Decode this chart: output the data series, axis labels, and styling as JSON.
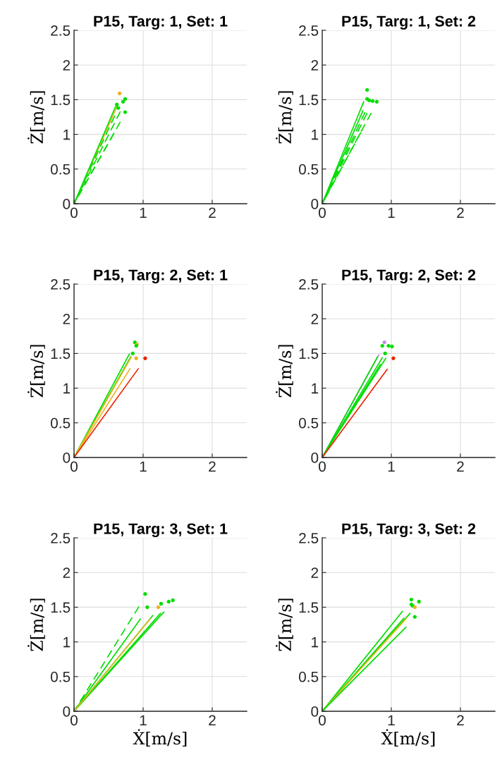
{
  "chart_data": [
    {
      "type": "line",
      "title": "P15, Targ: 1, Set: 1",
      "ylabel": "Ż[m/s]",
      "xlim": [
        0,
        2.5
      ],
      "ylim": [
        0,
        2.5
      ],
      "xticks": [
        0,
        1,
        2
      ],
      "yticks": [
        0,
        0.5,
        1,
        1.5,
        2,
        2.5
      ],
      "grid": true,
      "series": [
        {
          "type": "line",
          "color": "#edb120",
          "line_style": "solid",
          "x": [
            0,
            0.63
          ],
          "values": [
            0,
            1.42
          ]
        },
        {
          "type": "line",
          "color": "#00dd00",
          "line_style": "solid",
          "x": [
            0,
            0.6
          ],
          "values": [
            0,
            1.4
          ]
        },
        {
          "type": "line",
          "color": "#00dd00",
          "line_style": "dashed",
          "x": [
            0,
            0.67
          ],
          "values": [
            0,
            1.33
          ]
        },
        {
          "type": "line",
          "color": "#00dd00",
          "line_style": "dashed",
          "x": [
            0,
            0.59
          ],
          "values": [
            0,
            1.27
          ]
        },
        {
          "type": "line",
          "color": "#00dd00",
          "line_style": "dashed",
          "x": [
            0,
            0.67
          ],
          "values": [
            0,
            1.18
          ]
        },
        {
          "type": "line",
          "color": "#00dd00",
          "line_style": "dashed",
          "x": [
            0,
            0.58
          ],
          "values": [
            0,
            1.02
          ]
        },
        {
          "type": "scatter",
          "marker": "circle",
          "x": [
            0.66,
            0.74,
            0.71,
            0.62,
            0.64,
            0.74
          ],
          "values": [
            1.59,
            1.51,
            1.47,
            1.43,
            1.38,
            1.32
          ],
          "colors": [
            "#edb120",
            "#00dd00",
            "#00dd00",
            "#00dd00",
            "#00dd00",
            "#00dd00"
          ]
        }
      ]
    },
    {
      "type": "line",
      "title": "P15, Targ: 1, Set: 2",
      "ylabel": "Ż[m/s]",
      "xlim": [
        0,
        2.5
      ],
      "ylim": [
        0,
        2.5
      ],
      "xticks": [
        0,
        1,
        2
      ],
      "yticks": [
        0,
        0.5,
        1,
        1.5,
        2,
        2.5
      ],
      "grid": true,
      "series": [
        {
          "type": "line",
          "color": "#00dd00",
          "line_style": "solid",
          "x": [
            0,
            0.6
          ],
          "values": [
            0,
            1.47
          ]
        },
        {
          "type": "line",
          "color": "#00dd00",
          "line_style": "solid",
          "x": [
            0,
            0.59
          ],
          "values": [
            0,
            1.34
          ]
        },
        {
          "type": "line",
          "color": "#00dd00",
          "line_style": "dashed",
          "x": [
            0,
            0.62
          ],
          "values": [
            0,
            1.32
          ]
        },
        {
          "type": "line",
          "color": "#00dd00",
          "line_style": "dashed",
          "x": [
            0,
            0.65
          ],
          "values": [
            0,
            1.31
          ]
        },
        {
          "type": "line",
          "color": "#00dd00",
          "line_style": "dashed",
          "x": [
            0,
            0.71
          ],
          "values": [
            0,
            1.31
          ]
        },
        {
          "type": "line",
          "color": "#00dd00",
          "line_style": "dashed",
          "x": [
            0,
            0.56
          ],
          "values": [
            0,
            1.03
          ]
        },
        {
          "type": "scatter",
          "marker": "circle",
          "x": [
            0.65,
            0.65,
            0.68,
            0.73,
            0.79
          ],
          "values": [
            1.64,
            1.51,
            1.49,
            1.48,
            1.47
          ],
          "colors": [
            "#00dd00",
            "#00dd00",
            "#00dd00",
            "#00dd00",
            "#00dd00"
          ]
        }
      ]
    },
    {
      "type": "line",
      "title": "P15, Targ: 2, Set: 1",
      "ylabel": "Ż[m/s]",
      "xlim": [
        0,
        2.5
      ],
      "ylim": [
        0,
        2.5
      ],
      "xticks": [
        0,
        1,
        2
      ],
      "yticks": [
        0,
        0.5,
        1,
        1.5,
        2,
        2.5
      ],
      "grid": true,
      "series": [
        {
          "type": "line",
          "color": "#00dd00",
          "line_style": "solid",
          "x": [
            0,
            0.8
          ],
          "values": [
            0,
            1.49
          ]
        },
        {
          "type": "line",
          "color": "#00dd00",
          "line_style": "solid",
          "x": [
            0,
            0.82
          ],
          "values": [
            0,
            1.45
          ]
        },
        {
          "type": "line",
          "color": "#edb120",
          "line_style": "solid",
          "x": [
            0,
            0.83
          ],
          "values": [
            0,
            1.45
          ]
        },
        {
          "type": "line",
          "color": "#edb120",
          "line_style": "solid",
          "x": [
            0,
            0.81
          ],
          "values": [
            0,
            1.28
          ]
        },
        {
          "type": "line",
          "color": "#ee2200",
          "line_style": "solid",
          "x": [
            0,
            0.93
          ],
          "values": [
            0,
            1.28
          ]
        },
        {
          "type": "scatter",
          "marker": "circle",
          "x": [
            0.88,
            0.91,
            0.9,
            0.85,
            0.9,
            1.03
          ],
          "values": [
            1.66,
            1.63,
            1.61,
            1.5,
            1.43,
            1.43
          ],
          "colors": [
            "#00dd00",
            "#edb120",
            "#00dd00",
            "#00dd00",
            "#edb120",
            "#ee2200"
          ]
        }
      ]
    },
    {
      "type": "line",
      "title": "P15, Targ: 2, Set: 2",
      "ylabel": "Ż[m/s]",
      "xlim": [
        0,
        2.5
      ],
      "ylim": [
        0,
        2.5
      ],
      "xticks": [
        0,
        1,
        2
      ],
      "yticks": [
        0,
        0.5,
        1,
        1.5,
        2,
        2.5
      ],
      "grid": true,
      "series": [
        {
          "type": "line",
          "color": "#cc88ee",
          "line_style": "solid",
          "x": [
            0,
            0.82
          ],
          "values": [
            0,
            1.48
          ]
        },
        {
          "type": "line",
          "color": "#00dd00",
          "line_style": "solid",
          "x": [
            0,
            0.8
          ],
          "values": [
            0,
            1.45
          ]
        },
        {
          "type": "line",
          "color": "#00dd00",
          "line_style": "solid",
          "x": [
            0,
            0.87
          ],
          "values": [
            0,
            1.44
          ]
        },
        {
          "type": "line",
          "color": "#00dd00",
          "line_style": "solid",
          "x": [
            0,
            0.92
          ],
          "values": [
            0,
            1.43
          ]
        },
        {
          "type": "line",
          "color": "#00dd00",
          "line_style": "solid",
          "x": [
            0,
            0.84
          ],
          "values": [
            0,
            1.34
          ]
        },
        {
          "type": "line",
          "color": "#ee2200",
          "line_style": "solid",
          "x": [
            0,
            0.94
          ],
          "values": [
            0,
            1.27
          ]
        },
        {
          "type": "scatter",
          "marker": "circle",
          "x": [
            0.9,
            0.87,
            0.96,
            1.01,
            0.91,
            1.03
          ],
          "values": [
            1.66,
            1.61,
            1.61,
            1.6,
            1.5,
            1.43
          ],
          "colors": [
            "#cc88ee",
            "#00dd00",
            "#00dd00",
            "#00dd00",
            "#00dd00",
            "#ee2200"
          ]
        }
      ]
    },
    {
      "type": "line",
      "title": "P15, Targ: 3, Set: 1",
      "xlabel": "Ẋ[m/s]",
      "ylabel": "Ż[m/s]",
      "xlim": [
        0,
        2.5
      ],
      "ylim": [
        0,
        2.5
      ],
      "xticks": [
        0,
        1,
        2
      ],
      "yticks": [
        0,
        0.5,
        1,
        1.5,
        2,
        2.5
      ],
      "grid": true,
      "series": [
        {
          "type": "line",
          "color": "#00dd00",
          "line_style": "dashed",
          "x": [
            0,
            0.94
          ],
          "values": [
            0,
            1.51
          ]
        },
        {
          "type": "line",
          "color": "#00dd00",
          "line_style": "solid",
          "x": [
            0,
            0.96
          ],
          "values": [
            0,
            1.33
          ]
        },
        {
          "type": "line",
          "color": "#00dd00",
          "line_style": "solid",
          "x": [
            0,
            1.14
          ],
          "values": [
            0,
            1.38
          ]
        },
        {
          "type": "line",
          "color": "#00dd00",
          "line_style": "solid",
          "x": [
            0,
            1.25
          ],
          "values": [
            0,
            1.41
          ]
        },
        {
          "type": "line",
          "color": "#00dd00",
          "line_style": "solid",
          "x": [
            0,
            1.3
          ],
          "values": [
            0,
            1.43
          ]
        },
        {
          "type": "line",
          "color": "#edb120",
          "line_style": "solid",
          "x": [
            0,
            1.1
          ],
          "values": [
            0,
            1.33
          ]
        },
        {
          "type": "scatter",
          "marker": "circle",
          "x": [
            1.03,
            1.06,
            1.22,
            1.26,
            1.37,
            1.43
          ],
          "values": [
            1.69,
            1.5,
            1.5,
            1.55,
            1.58,
            1.6
          ],
          "colors": [
            "#00dd00",
            "#00dd00",
            "#edb120",
            "#00dd00",
            "#00dd00",
            "#00dd00"
          ]
        }
      ]
    },
    {
      "type": "line",
      "title": "P15, Targ: 3, Set: 2",
      "xlabel": "Ẋ[m/s]",
      "ylabel": "Ż[m/s]",
      "xlim": [
        0,
        2.5
      ],
      "ylim": [
        0,
        2.5
      ],
      "xticks": [
        0,
        1,
        2
      ],
      "yticks": [
        0,
        0.5,
        1,
        1.5,
        2,
        2.5
      ],
      "grid": true,
      "series": [
        {
          "type": "line",
          "color": "#00dd00",
          "line_style": "solid",
          "x": [
            0,
            1.16
          ],
          "values": [
            0,
            1.44
          ]
        },
        {
          "type": "line",
          "color": "#00dd00",
          "line_style": "solid",
          "x": [
            0,
            1.27
          ],
          "values": [
            0,
            1.41
          ]
        },
        {
          "type": "line",
          "color": "#00dd00",
          "line_style": "solid",
          "x": [
            0,
            1.18
          ],
          "values": [
            0,
            1.34
          ]
        },
        {
          "type": "line",
          "color": "#edb120",
          "line_style": "solid",
          "x": [
            0,
            1.22
          ],
          "values": [
            0,
            1.34
          ]
        },
        {
          "type": "line",
          "color": "#00dd00",
          "line_style": "solid",
          "x": [
            0,
            1.21
          ],
          "values": [
            0,
            1.21
          ]
        },
        {
          "type": "scatter",
          "marker": "circle",
          "x": [
            1.29,
            1.4,
            1.29,
            1.31,
            1.34,
            1.34
          ],
          "values": [
            1.61,
            1.58,
            1.54,
            1.52,
            1.5,
            1.36
          ],
          "colors": [
            "#00dd00",
            "#00dd00",
            "#00dd00",
            "#00dd00",
            "#edb120",
            "#00dd00"
          ]
        }
      ]
    }
  ]
}
